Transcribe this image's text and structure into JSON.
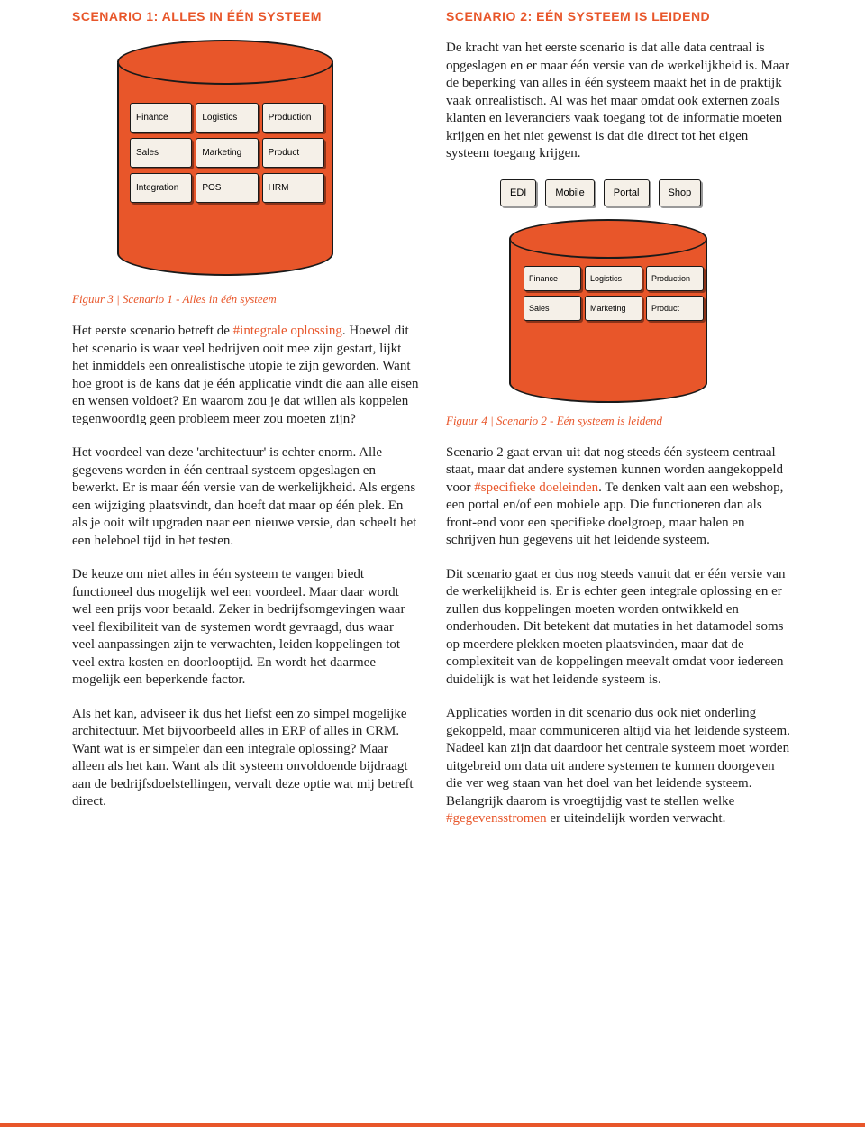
{
  "colors": {
    "accent": "#e8562a",
    "text": "#222222",
    "module_bg": "#f5f0e8",
    "border": "#1a1a1a",
    "page_bg": "#ffffff"
  },
  "left": {
    "heading": "SCENARIO 1: ALLES IN ÉÉN SYSTEEM",
    "diagram": {
      "type": "cylinder-with-modules",
      "modules": [
        "Finance",
        "Logistics",
        "Production",
        "Sales",
        "Marketing",
        "Product",
        "Integration",
        "POS",
        "HRM"
      ]
    },
    "caption": "Figuur 3 | Scenario 1 - Alles in één systeem",
    "para1_a": "Het eerste scenario betreft de ",
    "para1_hl": "#integrale oplossing",
    "para1_b": ". Hoewel dit het scenario is waar veel bedrijven ooit mee zijn gestart, lijkt het inmiddels een onrealistische utopie te zijn geworden. Want hoe groot is de kans dat je één applicatie vindt die aan alle eisen en wensen voldoet? En waarom zou je dat willen als koppelen tegenwoordig geen probleem meer zou moeten zijn?",
    "para2": "Het voordeel van deze 'architectuur' is echter enorm. Alle gegevens worden in één centraal systeem opgeslagen en bewerkt. Er is maar één versie van de werkelijkheid. Als ergens een wijziging plaatsvindt, dan hoeft dat maar op één plek. En als je ooit wilt upgraden naar een nieuwe versie, dan scheelt het een heleboel tijd in het testen.",
    "para3": "De keuze om niet alles in één systeem te vangen biedt functioneel dus mogelijk wel een voordeel. Maar daar wordt wel een prijs voor betaald. Zeker in bedrijfsomgevingen waar veel flexibiliteit van de systemen wordt gevraagd, dus waar veel aanpassingen zijn te verwachten, leiden koppelingen tot veel extra kosten en doorlooptijd. En wordt het daarmee mogelijk een beperkende factor.",
    "para4": "Als het kan, adviseer ik dus het liefst een zo simpel mogelijke architectuur. Met bijvoorbeeld alles in ERP of alles in CRM. Want wat is er simpeler dan een integrale oplossing? Maar alleen als het kan. Want als dit systeem onvoldoende bijdraagt aan de bedrijfsdoelstellingen, vervalt deze optie wat mij betreft direct."
  },
  "right": {
    "heading": "SCENARIO 2: EÉN SYSTEEM IS LEIDEND",
    "para1": "De kracht van het eerste scenario is dat alle data centraal is opgeslagen en er maar één versie van de werkelijkheid is. Maar de beperking van alles in één systeem maakt het in de praktijk vaak onrealistisch. Al was het maar omdat ook externen zoals klanten en leveranciers vaak toegang tot de informatie moeten krijgen en het niet gewenst is dat die direct tot het eigen systeem toegang krijgen.",
    "diagram": {
      "type": "cylinder-with-external-boxes",
      "external": [
        "EDI",
        "Mobile",
        "Portal",
        "Shop"
      ],
      "modules": [
        "Finance",
        "Logistics",
        "Production",
        "Sales",
        "Marketing",
        "Product"
      ]
    },
    "caption": "Figuur 4 | Scenario 2 - Eén systeem is leidend",
    "para2_a": "Scenario 2 gaat ervan uit dat nog steeds één systeem centraal staat, maar dat andere systemen kunnen worden aangekoppeld voor ",
    "para2_hl": "#specifieke doeleinden",
    "para2_b": ". Te denken valt aan een webshop, een portal en/of een mobiele app. Die functioneren dan als front-end voor een specifieke doelgroep, maar halen en schrijven hun gegevens uit het leidende systeem.",
    "para3": "Dit scenario gaat er dus nog steeds vanuit dat er één versie van de werkelijkheid is. Er is echter geen integrale oplossing en er zullen dus koppelingen moeten worden ontwikkeld en onderhouden. Dit betekent dat mutaties in het datamodel soms op meerdere plekken moeten plaatsvinden, maar dat de complexiteit van de koppelingen meevalt omdat voor iedereen duidelijk is wat het leidende systeem is.",
    "para4_a": "Applicaties worden in dit scenario dus ook niet onderling gekoppeld, maar communiceren altijd via het leidende systeem. Nadeel kan zijn dat daardoor het centrale systeem moet worden uitgebreid om data uit andere systemen te kunnen doorgeven die ver weg staan van het doel van het leidende systeem. Belangrijk daarom is vroegtijdig vast te stellen welke ",
    "para4_hl": "#gegevensstromen",
    "para4_b": " er uiteindelijk worden verwacht."
  }
}
